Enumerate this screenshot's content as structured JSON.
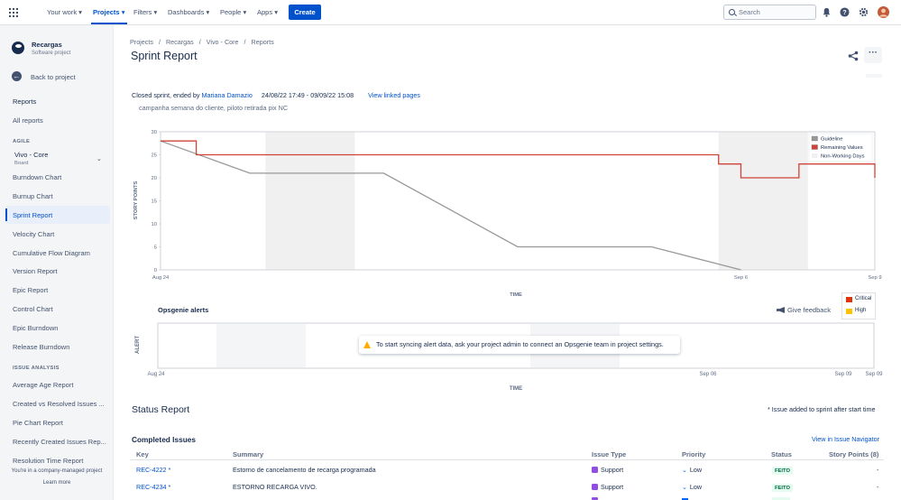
{
  "topnav": {
    "items": [
      "Your work",
      "Projects",
      "Filters",
      "Dashboards",
      "People",
      "Apps"
    ],
    "active": "Projects",
    "create_label": "Create",
    "search_placeholder": "Search"
  },
  "sidebar": {
    "project_name": "Recargas",
    "project_type": "Software project",
    "back_label": "Back to project",
    "reports_label": "Reports",
    "all_reports_label": "All reports",
    "agile_heading": "AGILE",
    "board_name": "Vivo - Core",
    "board_type": "Board",
    "agile_items": [
      "Burndown Chart",
      "Burnup Chart",
      "Sprint Report",
      "Velocity Chart",
      "Cumulative Flow Diagram",
      "Version Report",
      "Epic Report",
      "Control Chart",
      "Epic Burndown",
      "Release Burndown"
    ],
    "active_item": "Sprint Report",
    "issue_analysis_heading": "ISSUE ANALYSIS",
    "issue_items": [
      "Average Age Report",
      "Created vs Resolved Issues ...",
      "Pie Chart Report",
      "Recently Created Issues Rep...",
      "Resolution Time Report"
    ],
    "footer_text": "You're in a company-managed project",
    "learn_more": "Learn more"
  },
  "breadcrumb": [
    "Projects",
    "Recargas",
    "Vivo - Core",
    "Reports"
  ],
  "page_title": "Sprint Report",
  "sprint": {
    "status_prefix": "Closed sprint, ended by ",
    "ended_by": "Mariana Damazio",
    "dates": "24/08/22 17:49 - 09/09/22 15:08",
    "linked_pages": "View linked pages",
    "goal": "campanha semana do cliente, piloto retirada pix NC"
  },
  "chart_data": {
    "type": "line",
    "ylabel": "STORY POINTS",
    "xlabel": "TIME",
    "ylim": [
      0,
      30
    ],
    "yticks": [
      0,
      5,
      10,
      15,
      20,
      25,
      30
    ],
    "xticks": [
      "Aug 24",
      "Sep 6",
      "Sep 9"
    ],
    "legend_position": "top-right",
    "legend": [
      "Guideline",
      "Remaining Values",
      "Non-Working Days"
    ],
    "series": [
      {
        "name": "Guideline",
        "color": "#999999",
        "points": [
          [
            "Aug 24",
            28
          ],
          [
            "Aug 26",
            21
          ],
          [
            "Aug 29",
            21
          ],
          [
            "Sep 1",
            5
          ],
          [
            "Sep 4",
            5
          ],
          [
            "Sep 6",
            0
          ]
        ]
      },
      {
        "name": "Remaining Values",
        "color": "#d04437",
        "points": [
          [
            "Aug 24",
            28
          ],
          [
            "Aug 24.8",
            25
          ],
          [
            "Sep 5.5",
            23
          ],
          [
            "Sep 6",
            20
          ],
          [
            "Sep 7.3",
            23
          ],
          [
            "Sep 9",
            20
          ]
        ]
      }
    ]
  },
  "opsgenie": {
    "title": "Opsgenie alerts",
    "feedback_label": "Give feedback",
    "legend": [
      "Critical",
      "High"
    ],
    "legend_colors": [
      "#de350b",
      "#ffc400"
    ],
    "ylabel": "ALERT",
    "xlabel": "TIME",
    "xticks": [
      "Aug 24",
      "Sep 06",
      "Sep 09",
      "Sep 09"
    ],
    "message": "To start syncing alert data, ask your project admin to connect an Opsgenie team in project settings."
  },
  "status_report": {
    "title": "Status Report",
    "note": "* Issue added to sprint after start time",
    "completed_title": "Completed Issues",
    "issue_nav_link": "View in Issue Navigator",
    "columns": [
      "Key",
      "Summary",
      "Issue Type",
      "Priority",
      "Status",
      "Story Points (8)"
    ],
    "rows": [
      {
        "key": "REC-4222 *",
        "summary": "Estorno de cancelamento de recarga programada",
        "type": "Support",
        "priority": "Low",
        "status": "FEITO",
        "points": "-"
      },
      {
        "key": "REC-4234 *",
        "summary": "ESTORNO RECARGA VIVO.",
        "type": "Support",
        "priority": "Low",
        "status": "FEITO",
        "points": "-"
      }
    ]
  }
}
